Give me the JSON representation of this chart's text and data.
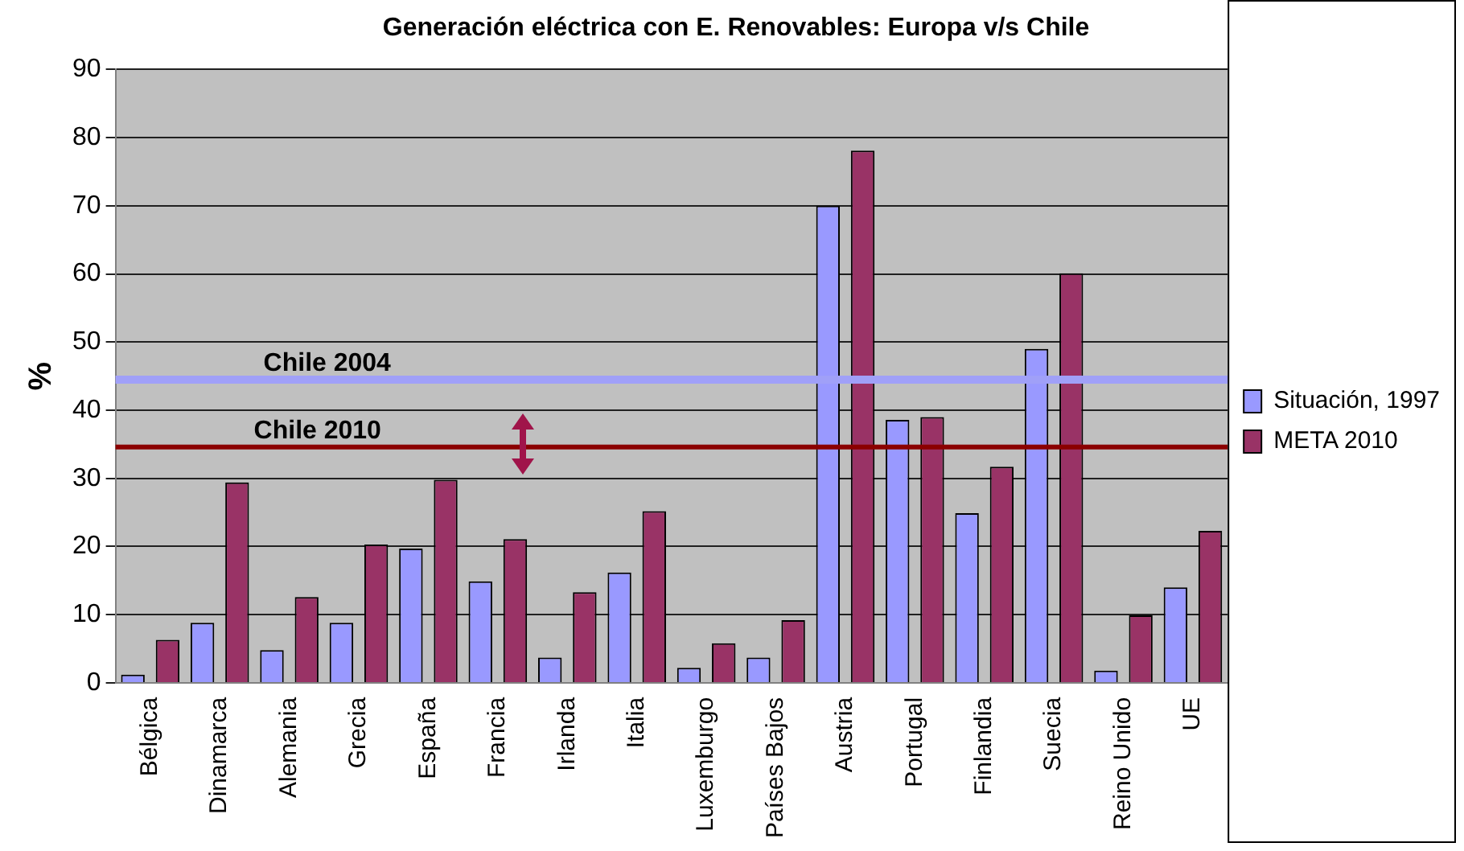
{
  "chart_data": {
    "type": "bar",
    "title": "Generación eléctrica con E. Renovables: Europa v/s Chile",
    "ylabel": "%",
    "categories": [
      "Bélgica",
      "Dinamarca",
      "Alemania",
      "Grecia",
      "España",
      "Francia",
      "Irlanda",
      "Italia",
      "Luxemburgo",
      "Países Bajos",
      "Austria",
      "Portugal",
      "Finlandia",
      "Suecia",
      "Reino Unido",
      "UE"
    ],
    "series": [
      {
        "name": "Situación, 1997",
        "color": "#9999ff",
        "values": [
          1.2,
          8.8,
          4.8,
          8.8,
          19.7,
          14.9,
          3.7,
          16.2,
          2.2,
          3.7,
          70,
          38.6,
          24.9,
          49,
          1.8,
          14
        ]
      },
      {
        "name": "META 2010",
        "color": "#993366",
        "values": [
          6.3,
          29.4,
          12.6,
          20.3,
          29.8,
          21.1,
          13.3,
          25.2,
          5.8,
          9.2,
          78.1,
          39,
          31.7,
          60.1,
          9.9,
          22.3
        ]
      }
    ],
    "ylim": [
      0,
      90
    ],
    "yticks": [
      0,
      10,
      20,
      30,
      40,
      50,
      60,
      70,
      80,
      90
    ],
    "grid": "y",
    "legend": "right",
    "ref_lines": [
      {
        "axis": "y",
        "value": 44.5,
        "label": "Chile 2004",
        "color": "#a0a0f8"
      },
      {
        "axis": "y",
        "value": 34.6,
        "label": "Chile 2010",
        "color": "#8b0000"
      }
    ]
  }
}
